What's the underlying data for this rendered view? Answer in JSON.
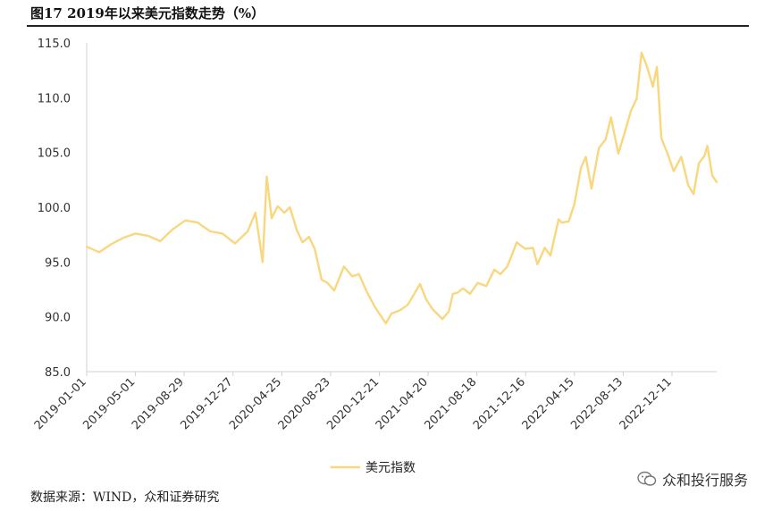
{
  "header": {
    "title": "图17 2019年以来美元指数走势（%）"
  },
  "footer": {
    "source": "数据来源：WIND，众和证券研究"
  },
  "watermark": {
    "text": "众和投行服务"
  },
  "chart_data": {
    "type": "line",
    "title": "图17 2019年以来美元指数走势（%）",
    "xlabel": "",
    "ylabel": "",
    "ylim": [
      85,
      115
    ],
    "yticks": [
      "85.0",
      "90.0",
      "95.0",
      "100.0",
      "105.0",
      "110.0",
      "115.0"
    ],
    "xticks": [
      "2019-01-01",
      "2019-05-01",
      "2019-08-29",
      "2019-12-27",
      "2020-04-25",
      "2020-08-23",
      "2020-12-21",
      "2021-04-20",
      "2021-08-18",
      "2021-12-16",
      "2022-04-15",
      "2022-08-13",
      "2022-12-11"
    ],
    "x_range": [
      "2019-01-01",
      "2023-03-31"
    ],
    "grid": false,
    "legend": "bottom-center",
    "series": [
      {
        "name": "美元指数",
        "color": "#F8D77F",
        "x": [
          "2019-01-01",
          "2019-02-01",
          "2019-03-01",
          "2019-04-01",
          "2019-05-01",
          "2019-06-01",
          "2019-07-01",
          "2019-08-01",
          "2019-09-01",
          "2019-10-01",
          "2019-11-01",
          "2019-12-01",
          "2020-01-01",
          "2020-02-01",
          "2020-02-20",
          "2020-03-09",
          "2020-03-19",
          "2020-03-31",
          "2020-04-15",
          "2020-05-01",
          "2020-05-15",
          "2020-06-01",
          "2020-06-15",
          "2020-07-01",
          "2020-07-15",
          "2020-08-01",
          "2020-08-15",
          "2020-09-01",
          "2020-09-25",
          "2020-10-15",
          "2020-11-01",
          "2020-11-20",
          "2020-12-10",
          "2021-01-06",
          "2021-01-20",
          "2021-02-10",
          "2021-03-01",
          "2021-03-31",
          "2021-04-15",
          "2021-05-01",
          "2021-05-25",
          "2021-06-10",
          "2021-06-20",
          "2021-07-01",
          "2021-07-15",
          "2021-08-01",
          "2021-08-20",
          "2021-09-10",
          "2021-09-30",
          "2021-10-15",
          "2021-11-01",
          "2021-11-24",
          "2021-12-15",
          "2022-01-03",
          "2022-01-14",
          "2022-02-01",
          "2022-02-15",
          "2022-03-07",
          "2022-03-15",
          "2022-04-01",
          "2022-04-15",
          "2022-05-01",
          "2022-05-13",
          "2022-05-27",
          "2022-06-14",
          "2022-07-01",
          "2022-07-14",
          "2022-08-01",
          "2022-08-15",
          "2022-09-01",
          "2022-09-15",
          "2022-09-27",
          "2022-10-10",
          "2022-10-25",
          "2022-11-04",
          "2022-11-15",
          "2022-12-01",
          "2022-12-15",
          "2023-01-03",
          "2023-01-20",
          "2023-02-02",
          "2023-02-15",
          "2023-03-01",
          "2023-03-08",
          "2023-03-20",
          "2023-03-31"
        ],
        "values": [
          96.4,
          95.9,
          96.6,
          97.2,
          97.6,
          97.4,
          96.9,
          98.0,
          98.8,
          98.6,
          97.8,
          97.6,
          96.7,
          97.8,
          99.5,
          95.0,
          102.8,
          99.0,
          100.1,
          99.5,
          100.0,
          97.9,
          96.8,
          97.3,
          96.2,
          93.4,
          93.1,
          92.4,
          94.6,
          93.7,
          93.9,
          92.3,
          90.9,
          89.4,
          90.3,
          90.6,
          91.1,
          93.0,
          91.6,
          90.7,
          89.8,
          90.5,
          92.1,
          92.2,
          92.6,
          92.1,
          93.1,
          92.8,
          94.3,
          93.9,
          94.6,
          96.8,
          96.2,
          96.3,
          94.8,
          96.3,
          95.6,
          98.9,
          98.6,
          98.7,
          100.3,
          103.6,
          104.6,
          101.7,
          105.4,
          106.2,
          108.2,
          104.9,
          106.6,
          108.8,
          109.9,
          114.1,
          112.9,
          111.0,
          112.8,
          106.3,
          104.8,
          103.3,
          104.6,
          102.0,
          101.2,
          104.0,
          104.7,
          105.6,
          102.9,
          102.3
        ]
      }
    ]
  }
}
